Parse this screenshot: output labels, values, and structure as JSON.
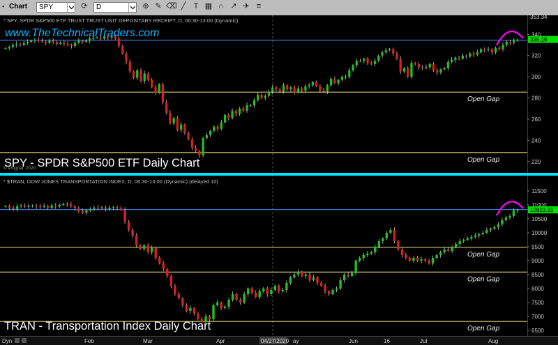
{
  "toolbar": {
    "chart_menu": "Chart",
    "symbol": "SPY",
    "interval": "D"
  },
  "watermark": "www.TheTechnicalTraders.com",
  "copyright": "© eSignal, 2020",
  "x_axis": {
    "dyn": "Dyn",
    "labels": [
      "Feb",
      "Mar",
      "Apr",
      "04/27/2020",
      "ay",
      "Jun",
      "16",
      "Jul",
      "Aug"
    ]
  },
  "chart_data": [
    {
      "type": "candlestick",
      "header": "* SPY, SPDR S&P500 ETF TRUST TRUST UNIT DEPOSITARY RECEIPT, D, 06:30-13:00 (Dynamic)",
      "caption": "SPY - SPDR S&P500 ETF Daily Chart",
      "y_ticks": [
        220,
        240,
        260,
        280,
        300,
        320,
        340
      ],
      "ylim": [
        212,
        354
      ],
      "max_label": "353.34",
      "last_price_label": "335.16",
      "last_price": 335.2,
      "blue_line": 334.5,
      "gap_lines": [
        285.5,
        228.5
      ],
      "annotations": [
        "Open Gap",
        "Open Gap"
      ],
      "close": [
        327,
        328,
        330,
        331,
        330,
        332,
        333,
        334,
        335,
        334,
        333,
        332,
        334,
        333,
        331,
        332,
        331,
        330,
        329,
        332,
        334,
        333,
        334,
        336,
        337,
        337,
        336,
        338,
        337,
        338,
        336,
        329,
        322,
        314,
        305,
        299,
        306,
        296,
        303,
        297,
        290,
        285,
        293,
        276,
        266,
        256,
        261,
        250,
        255,
        247,
        241,
        233,
        230,
        226,
        242,
        245,
        249,
        253,
        251,
        257,
        264,
        261,
        268,
        265,
        270,
        268,
        273,
        273,
        278,
        283,
        280,
        282,
        286,
        290,
        288,
        286,
        292,
        288,
        290,
        285,
        289,
        287,
        291,
        292,
        295,
        291,
        287,
        286,
        292,
        298,
        294,
        297,
        300,
        300,
        306,
        311,
        315,
        315,
        317,
        313,
        312,
        315,
        320,
        323,
        325,
        326,
        322,
        317,
        305,
        308,
        300,
        313,
        312,
        309,
        308,
        309,
        312,
        306,
        304,
        307,
        308,
        314,
        316,
        318,
        317,
        320,
        319,
        322,
        321,
        323,
        326,
        325,
        326,
        323,
        327,
        326,
        330,
        333,
        332,
        334,
        335
      ]
    },
    {
      "type": "candlestick",
      "header": "* $TRAN, DOW JONES TRANSPORTATION INDEX, D, 06:30-13:00 (Dynamic) (delayed 10)",
      "caption": "TRAN - Transportation Index Daily Chart",
      "y_ticks": [
        6500,
        7000,
        7500,
        8000,
        8500,
        9000,
        9500,
        10000,
        10500,
        11000,
        11500
      ],
      "ylim": [
        6400,
        11900
      ],
      "last_price_label": "10823.31",
      "last_price": 10823,
      "blue_line": 10835,
      "gap_lines": [
        9480,
        8590,
        6820
      ],
      "annotations": [
        "Open Gap",
        "Open Gap",
        "Open Gap"
      ],
      "close": [
        10950,
        10900,
        10850,
        10950,
        10980,
        10930,
        10960,
        10980,
        10950,
        10920,
        10960,
        10900,
        10980,
        10950,
        11000,
        11030,
        11010,
        10950,
        10880,
        10780,
        10720,
        10800,
        10860,
        10900,
        10880,
        10910,
        10850,
        10900,
        10920,
        10880,
        10820,
        10400,
        10100,
        9900,
        9550,
        9420,
        9550,
        9300,
        9450,
        9100,
        8900,
        8700,
        8450,
        8100,
        7800,
        7650,
        7400,
        7200,
        7300,
        7100,
        6900,
        6800,
        7000,
        6900,
        7400,
        7500,
        7300,
        7350,
        7600,
        7800,
        7600,
        7500,
        7800,
        8000,
        7850,
        7700,
        7900,
        8000,
        7800,
        7950,
        8100,
        7900,
        7950,
        8200,
        8400,
        8500,
        8600,
        8450,
        8500,
        8300,
        8400,
        8200,
        8100,
        7900,
        7800,
        7950,
        8000,
        8300,
        8500,
        8450,
        8550,
        9000,
        9100,
        9200,
        9250,
        9300,
        9500,
        9700,
        9800,
        10000,
        10100,
        9700,
        9400,
        9200,
        9100,
        9000,
        9100,
        9000,
        9050,
        9000,
        8900,
        9100,
        9200,
        9300,
        9400,
        9350,
        9500,
        9600,
        9700,
        9750,
        9800,
        9850,
        9900,
        9950,
        10000,
        10100,
        10150,
        10200,
        10300,
        10450,
        10550,
        10600,
        10800,
        10820
      ]
    }
  ],
  "colors": {
    "up": "#20c020",
    "down": "#d82020",
    "gap_line": "#d8c878",
    "blue_line": "#3a7ad8",
    "arc": "#ff00ff",
    "watermark": "#1ab0ff",
    "separator": "#00e5ff",
    "price_bg": "#00e000"
  }
}
